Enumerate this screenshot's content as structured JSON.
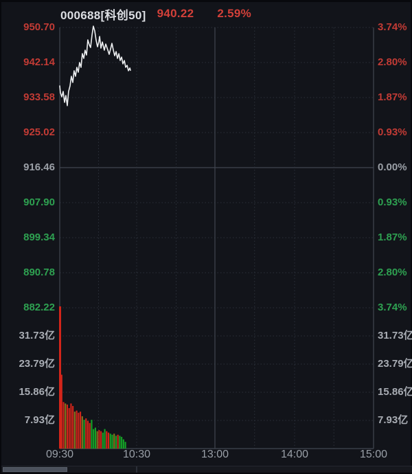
{
  "header": {
    "symbol": "000688[科创50]",
    "price": "940.22",
    "change_pct": "2.59%"
  },
  "colors": {
    "background": "#12141a",
    "up": "#c23b35",
    "down": "#2ea151",
    "flat": "#9ba0a7",
    "header_up": "#d24039",
    "price_line": "#edeff1",
    "bar_up": "#d3251a",
    "bar_down": "#15a327",
    "bar_mixed": "#85751f",
    "grid_solid": "#414650",
    "grid_dotted": "#2c313b"
  },
  "chart_data": {
    "type": "line",
    "title": "000688[科创50] intraday price and volume",
    "prev_close": 916.46,
    "last_price": 940.22,
    "change_pct": 2.59,
    "price_ticks": [
      "950.70",
      "942.14",
      "933.58",
      "925.02",
      "916.46",
      "907.90",
      "899.34",
      "890.78",
      "882.22"
    ],
    "pct_ticks": [
      "3.74%",
      "2.80%",
      "1.87%",
      "0.93%",
      "0.00%",
      "0.93%",
      "1.87%",
      "2.80%",
      "3.74%"
    ],
    "price_axis_range": [
      882.22,
      950.7
    ],
    "volume_ticks": [
      31.73,
      23.79,
      15.86,
      7.93
    ],
    "volume_unit": "亿",
    "volume_axis_max": 39.66,
    "x_labels": [
      "09:30",
      "10:30",
      "13:00",
      "14:00",
      "15:00"
    ],
    "session_minutes": 240,
    "grid": "dotted-30min",
    "legend_position": "none",
    "price_series": {
      "minutes": [
        0,
        0.5,
        1.6,
        2.6,
        3.7,
        4.7,
        5.8,
        6.8,
        7.9,
        8.9,
        10,
        11,
        12.1,
        13.1,
        14.2,
        15.2,
        16.3,
        17.3,
        18.4,
        19.4,
        20.5,
        21.5,
        22.6,
        23.6,
        24.7,
        25.7,
        26.8,
        27.8,
        28.9,
        29.9,
        30.5,
        31.5,
        32.6,
        34.1,
        35.2,
        36.8,
        37.8,
        38.9,
        39.9,
        41,
        42,
        43.1,
        44.1,
        45.2,
        46.2,
        47.3,
        48.3,
        49.4,
        50.4,
        51.5,
        52.5,
        53.6,
        54.1
      ],
      "values": [
        936.43,
        934.75,
        933.74,
        935.08,
        932.4,
        934.08,
        931.6,
        935.08,
        936.43,
        938.78,
        937.27,
        940.12,
        938.78,
        940.96,
        939.78,
        942.13,
        940.96,
        944.31,
        943.14,
        945.15,
        943.98,
        947.67,
        946.49,
        945.82,
        948.84,
        951.02,
        949.85,
        947.67,
        945.99,
        947.16,
        948.51,
        945.65,
        947.16,
        945.15,
        946.66,
        945.15,
        944.14,
        945.49,
        946.83,
        945.15,
        943.81,
        944.81,
        943.14,
        944.31,
        942.63,
        943.47,
        941.8,
        942.63,
        940.96,
        941.46,
        940.12,
        940.79,
        940.22
      ]
    },
    "volume_series": {
      "unit": "亿",
      "values": [
        40.5,
        20.8,
        13.1,
        12.7,
        12.4,
        11.4,
        12.7,
        12.0,
        10.4,
        10.7,
        10.1,
        10.4,
        9.1,
        8.1,
        8.5,
        7.8,
        7.2,
        8.1,
        5.5,
        5.9,
        4.9,
        5.2,
        4.9,
        4.5,
        5.5,
        4.9,
        4.5,
        4.2,
        3.9,
        4.2,
        3.6,
        3.9,
        3.6,
        3.3,
        2.6,
        1.9
      ],
      "colors": [
        "r",
        "r",
        "r",
        "o",
        "r",
        "r",
        "r",
        "r",
        "o",
        "r",
        "r",
        "r",
        "o",
        "g",
        "r",
        "r",
        "r",
        "g",
        "g",
        "g",
        "o",
        "r",
        "r",
        "g",
        "g",
        "r",
        "r",
        "g",
        "g",
        "o",
        "g",
        "r",
        "g",
        "g",
        "g",
        "g"
      ]
    }
  }
}
